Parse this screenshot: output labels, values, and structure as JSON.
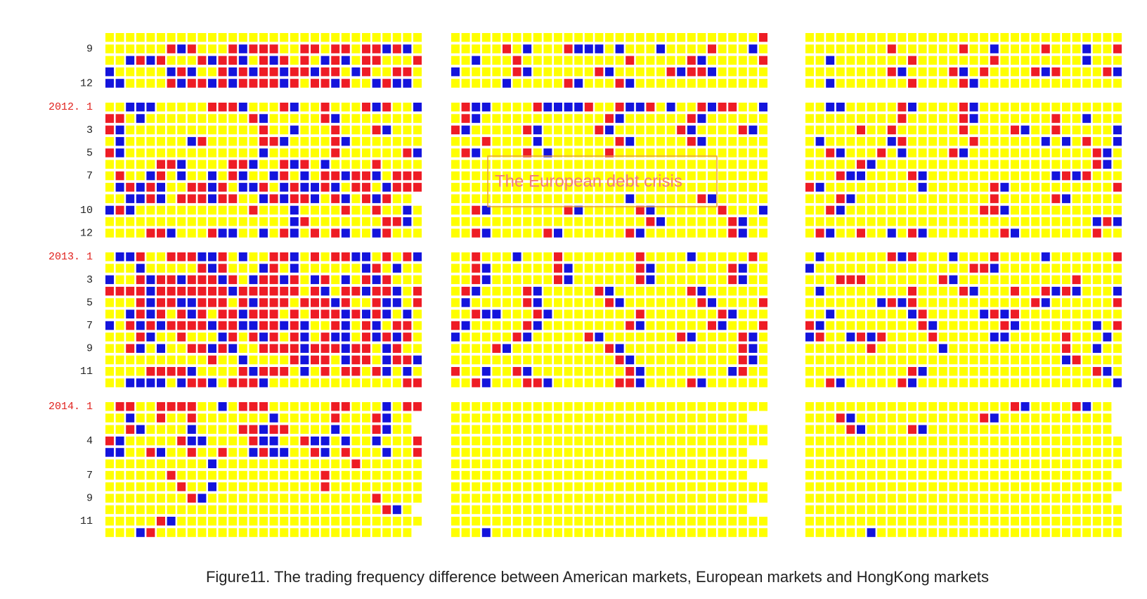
{
  "colors": {
    "Y": "#ffff00",
    "R": "#ee1c25",
    "B": "#1414dc"
  },
  "row_labels": [
    [
      null,
      "9",
      null,
      null,
      "12"
    ],
    [
      "2012. 1",
      null,
      "3",
      null,
      "5",
      null,
      "7",
      null,
      null,
      "10",
      null,
      "12"
    ],
    [
      "2013. 1",
      null,
      "3",
      null,
      "5",
      null,
      "7",
      null,
      "9",
      null,
      "11",
      null
    ],
    [
      "2014. 1",
      null,
      null,
      "4",
      null,
      null,
      "7",
      null,
      "9",
      null,
      "11",
      null
    ]
  ],
  "annotation": "The European debt crisis",
  "caption": "Figure11. The trading frequency difference between American markets, European markets and HongKong markets",
  "panels": [
    {
      "blocks": [
        {
          "rows": [
            "YYYYYYYYYYYYYYYYYYYYYYYYYYYYYYY",
            "YYYYYYRBRYYYRBRRRYYRRYRRYRRBRBY",
            "YYBRBRYYYRBRRBYRBRYRYBRBYRRYYYR",
            "BYYYYYBRBYYRBRBRRBRRBRRYBRYYRRY",
            "BBYYYYRBRRBRBRRRRBRYRRBRYYBRBBY"
          ]
        },
        {
          "rows": [
            "YYBBBYYYYYRRRBYYYRBYYRYYYRBRYYB",
            "RRYBYYYYYYYYYYRBYYYYYRBYYYYYYYY",
            "RBYYYYYYYYYYYYYRYYBYYYRYYYRBYYY",
            "YBYYYYYYBRYYYYYRRBYYYYRBYYYYYYY",
            "RBYYYYYYYYYYYYYBYYYYYYRYYYYYYRB",
            "YYYYYRRBYYYYRRBYYRBRYBYYYYRYYYY",
            "YRYYBRYBYYBYRBYYBRYBYRRBRRBYRRR",
            "YBRBRBYYRRBRYBBRYBRBBRBYRRYBRRR",
            "YYBBRBYRRRBRRYYBRBRRBYRBYRBRYY.",
            "BRBYYYYYYYYYYYRYYYBYYYYRYYRYYBY",
            "YYYYYYYYYYYYYYYYYYBRYYYYYYYRRBY",
            "YYYYRRBYYYRBBYYBYRBYRYRBYYBRYYY"
          ]
        },
        {
          "rows": [
            "YBBRYYRRRBBRYBYYRRBYRYRRBBYRYRB",
            "YYYBYYYYYRBRYYYBRYBYYYYYYBRYBYY",
            "BYYRBRRBRRRBRYBRRBRYBRYBYRBRYYY",
            "RRRRBRRRRRRRBRRRRRRYRBYRRBRRBYR",
            "YYYRBRRBBRRRYRBRRRYRRRBRYYRBBYR",
            "YYBRBRYRBRYRRBRRRYRYRRRBRBRBYBY",
            "BYRBRBRRRRBRRBBRRBRBYYRBYRBYRRY",
            "YYYRBYYRYYYBRYRBRYRBYRBBYRBRBRY",
            "YYRBYBYYRRBRBYYRRRRBRRRBRRYBRYY",
            "YYYYYYYYYYRYYBYYYYRBRRYBRRYBRRB",
            "YYYYRRRRBYYYYRBRRRYBYRYRRYRBYBY",
            "YYBBBBYBRRBYRRRBYYYYYYYYYYYYYRR"
          ]
        },
        {
          "rows": [
            "YRRYYRRRRYYBYRRRYYYYYYRRYYYBYRR",
            "YYBYYRYYRYYYYYYYBYYYYYRYYYRBYY.",
            "YYRBYYYYBYYYYRRBRRYYYYBYYYRBYY.",
            "RBYYYYYRBBYYYYRBBYYRBBYBYYBYYYR",
            "BBYYRBYYRYYRYYBRBBYYRBYRYYYBYYR",
            "YYYYYYYYYYBYYYYYYYYYYYYYRYYYYYY",
            "YYYYYYRYYYYYYYYYYYYYYRYYYYYYYYY",
            "YYYYYYYRYYBYYYYYYYYYYRYYYYYYYYY",
            "YYYYYYYYRBYYYYYYYYYYYYYYYYRYYYY",
            "YYYYYYYYYYYYYYYYYYYYYYYYYYYRBY.",
            "YYYYYRBYYYYYYYYYYYYYYYYYYYYYYYY",
            "YYYBRYYYYYYYYYYYYYYYYYYYYYYYYY."
          ]
        }
      ]
    },
    {
      "blocks": [
        {
          "rows": [
            "YYYYYYYYYYYYYYYYYYYYYYYYYYYYYYR",
            "YYYYYRYBYYYRBBBYBYYYBYYYYRYYYBY",
            "YYBYYYRYYYYYYYYYYRYYYYYRBYYYYYR",
            "BYYYYYRBYYYYYYRBYYYYYRBRRBYYYYY",
            "YYYYYBYYYYYRBYYYRBYYYYYYYYYYYYY"
          ]
        },
        {
          "rows": [
            "YRBBYYYYRBBBBRYYRBBRYBYYRBRRYYB",
            "YRBYYYYYYYYYYYYRBYYYYYYRBYYYYYY",
            "RBYYYYYRBYYYYYRBYYYYYYRBYYYYRBY",
            "YYYRYYYYBYYYYYYYRBYYYYYRBYYYYYY",
            "YRBYYYYRYBYYYYYRYYYYYYYYYYYYYYY",
            "YYYYYYYYYYYYYYYYYYYYYYYYYYYYYYY",
            "YYYYYYYYYYYYYYYYYYYYYYYYYYYYYYY",
            "YYYYYYYYYYYYYYYYYYYYYYYYYYYYYYY",
            "YYYYYYYYYYYYYYYYYBYYYYYYRBYYYYY",
            "YYRBYYYYYYYRBYYYYYRBYYYYYYRYYYB",
            "YYYYYYYYYYYYYYYYYYYRBYYYYYYRBYY",
            "YYRBYYYYYRBYYYYYYRBYYYYYYYYRBYY"
          ]
        },
        {
          "rows": [
            "YYRYYYBYYYRYYYYYYYRYYYYBYYYYYRY",
            "YYRBYYYYYYRBYYYYYYRBYYYYYYYRBYY",
            "YYRBYYYYYYRBYYYYYYRBYYYYYYYRBYY",
            "YRBYYYYRBYYYYYRBYYYYYYYRBYYYYYY",
            "YBYYYYYRBYYYYYYRBYYYYYYYRBYYYYR",
            "YYRBBYYYRBYYYYYYYYRYYYYYYYRBYYY",
            "RBYYYYYRBYYYYYYYYRBYYYYYYRBYYYR",
            "BYYYYYRBYYYYYRBYYYYYYYRBYYYYRBY",
            "YYYYRBYYYYYYYYYRBYYYYYYYYYYYRBY",
            "YYYYYYYYYYYYYYYYRBYYYYYYYYYYRBY",
            "RYYBYYRBYYYYYYYYYRBYYYYYYYYBRYY",
            "YYRBYYYRRBYYYYYYRRBYYYYRBYYYYYY"
          ]
        },
        {
          "rows": [
            "YYYYYYYYYYYYYYYYYYYYYYYYYYYYYYY",
            "YYYYYYYYYYYYYYYYYYYYYYYYYYYYY..",
            "YYYYYYYYYYYYYYYYYYYYYYYYYYYYYYY",
            "YYYYYYYYYYYYYYYYYYYYYYYYYYYYYYY",
            "YYYYYYYYYYYYYYYYYYYYYYYYYYYYY..",
            "YYYYYYYYYYYYYYYYYYYYYYYYYYYYYYY",
            "YYYYYYYYYYYYYYYYYYYYYYYYYYYYY..",
            "YYYYYYYYYYYYYYYYYYYYYYYYYYYYYYY",
            "YYYYYYYYYYYYYYYYYYYYYYYYYYYYYYY",
            "YYYYYYYYYYYYYYYYYYYYYYYYYYYYY..",
            "YYYYYYYYYYYYYYYYYYYYYYYYYYYYYYY",
            "YYYBYYYYYYYYYYYYYYYYYYYYYYYYYYY"
          ]
        }
      ]
    },
    {
      "blocks": [
        {
          "rows": [
            "YYYYYYYYYYYYYYYYYYYYYYYYYYYYYYY",
            "YYYYYYYYRYYYYYYRYYBYYYYRYYYBYYR",
            "YYBYYYYYYYRYYYYYYYRYYYYYYYYBYYY",
            "YYYYYYYYRBYYYYRBYRYYYYRBRYYYYRB",
            "YYBYYYYYYYRYYYYRBYYYYYYYYYYYYYY"
          ]
        },
        {
          "rows": [
            "YYBBYYYYYRBYYYYRBYYYYYYYYYYYYYY",
            "YYYYYYYYYRYYYYYRBYYYYYYYRYYBYYY",
            "YYYYYRYYRYYYYYYRYYYYRBYYRYYYYYB",
            "YBYYYYYYBRYYYYYYRYYYYYYBYBYRYYB",
            "YYRBYYYRYBYYYYRBYYYYYYYYYYYYRBY",
            "YYYYYRBYYYYYYYYYYYYYYYYYYYYYRBY",
            "YYYRBBYYYYRBYYYYYYYYYYYYBRBRYYY",
            "RBYYYYYYYYYBYYYYYYRBYYYYYYYYYYR",
            "YYYRBYYYYYYYYYYYYYRYYYYYRBYYYYY",
            "YYRBYYYYYYYYYYYYYRRBYYYYYYYYYYY",
            "YYYYYYYYYYYYYYYYYYYYYYYYYYYYBRB",
            "YRBYYRYYBYRBYYYYYYYRBYYYYYYYRYY"
          ]
        },
        {
          "rows": [
            "YBYYYYYYRBRYYYBYYYRYYYYBYYYYYYR",
            "BYYYYYYYYYYYYYYYRRBYYYYYYYYYYYY",
            "YYYRRRYYYYYYYRBYYYYYYYYYYYRYYYY",
            "YBYYYYYYYYRYYYYRBYYYRYYRBRBYYYB",
            "YYYYYYYBRBRYYYYYYYYYYYRBYYYYYYR",
            "YYBYYYYYYYBRYYYYYBRBRYYYYYYYYYY",
            "RBYYYYYYYYYRBYYYYYYRBYYYYYYYBYR",
            "BRYYBRBRYYYYRYYYYYBBYYYYYRYYYBY",
            "YYYYYYRYYYYYYBYYYYYYYYYYYRYYBYY",
            "YYYYYYYYYYYYYYYYYYYYYYYYYBRYYYY",
            "YYYYYYYYYYRBYYYYYYYYYYYYYYYYRBY",
            "YYRBYYYYYRBYYYYYYYYYYYYYYYYYYYB"
          ]
        },
        {
          "rows": [
            "YYYYYYYYYYYYYYYYYYYYRBYYYYRBYY.",
            "YYYRBYYYYYYYYYYYYRBYYYYYYYYYYY.",
            "YYYYRBYYYYRBYYYYYYYYYYYYYYYYYY.",
            "YYYYYYYYYYYYYYYYYYYYYYYYYYYYYYY",
            "YYYYYYYYYYYYYYYYYYYYYYYYYYYYYYY",
            "YYYYYYYYYYYYYYYYYYYYYYYYYYYYYYY",
            "YYYYYYYYYYYYYYYYYYYYYYYYYYYYYY.",
            "YYYYYYYYYYYYYYYYYYYYYYYYYYYYYYY",
            "YYYYYYYYYYYYYYYYYYYYYYYYYYYYYY.",
            "YYYYYYYYYYYYYYYYYYYYYYYYYYYYYYY",
            "YYYYYYYYYYYYYYYYYYYYYYYYYYYYYYY",
            "YYYYYYBYYYYYYYYYYYYYYYYYYYYYYYY"
          ]
        }
      ]
    }
  ]
}
